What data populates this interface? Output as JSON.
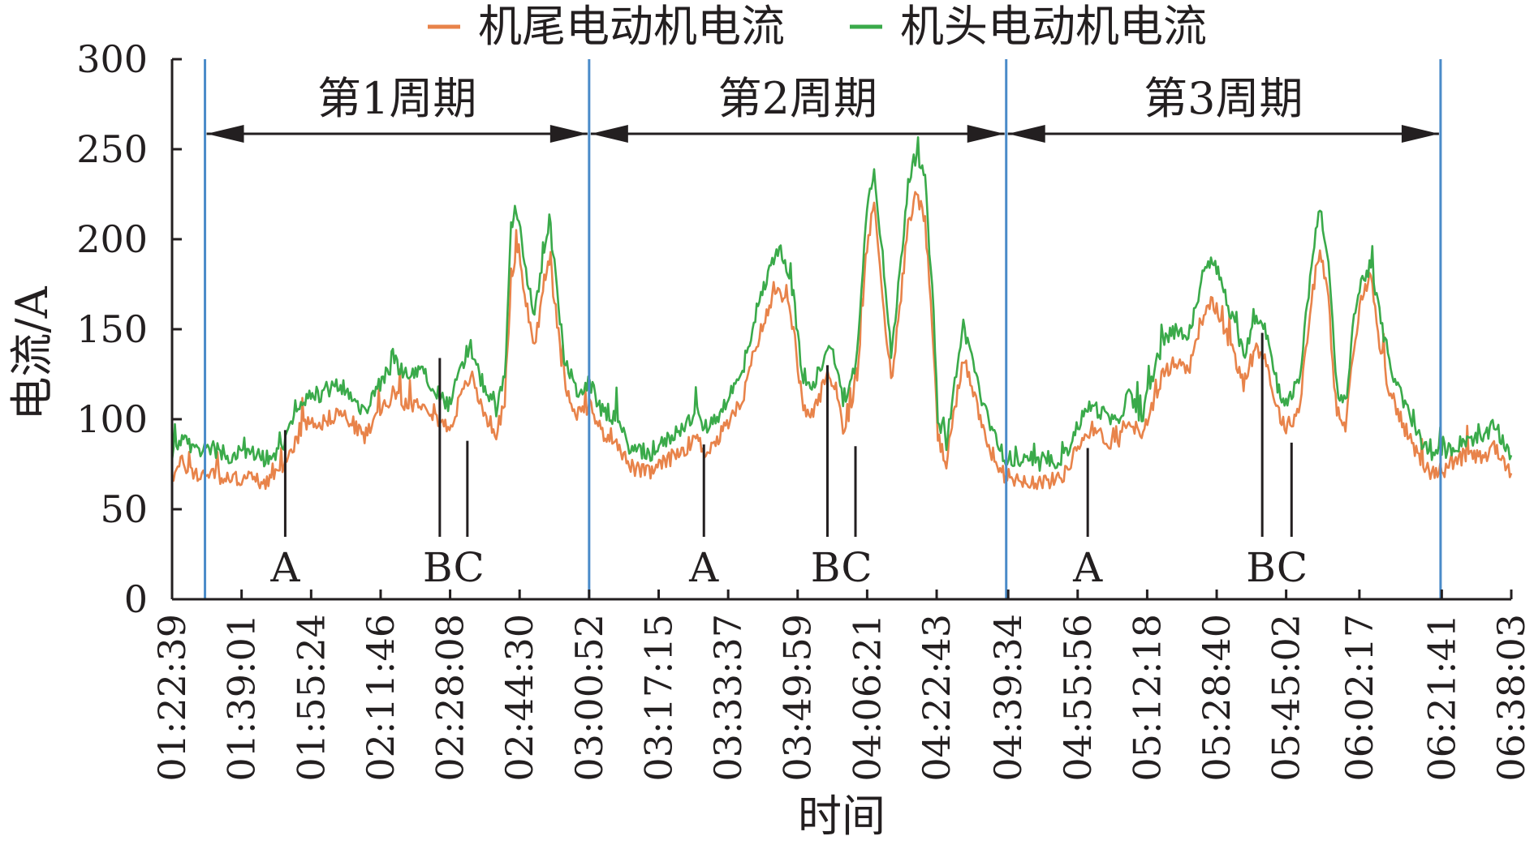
{
  "chart_data": {
    "type": "line",
    "xlabel": "时间",
    "ylabel": "电流/A",
    "ylim": [
      0,
      300
    ],
    "yticks": [
      0,
      50,
      100,
      150,
      200,
      250,
      300
    ],
    "x_range_minutes": [
      82.65,
      398.05
    ],
    "x_tick_labels": [
      "01:22:39",
      "01:39:01",
      "01:55:24",
      "02:11:46",
      "02:28:08",
      "02:44:30",
      "03:00:52",
      "03:17:15",
      "03:33:37",
      "03:49:59",
      "04:06:21",
      "04:22:43",
      "04:39:34",
      "04:55:56",
      "05:12:18",
      "05:28:40",
      "05:45:02",
      "06:02:17",
      "06:21:41",
      "06:38:03"
    ],
    "x_tick_minutes": [
      82.65,
      99.02,
      115.4,
      131.77,
      148.13,
      164.5,
      180.87,
      197.25,
      213.62,
      229.98,
      246.35,
      262.72,
      279.57,
      295.93,
      312.3,
      328.67,
      345.03,
      362.28,
      381.68,
      398.05
    ],
    "legend": {
      "position": "top-center"
    },
    "series": [
      {
        "name": "机尾电动机电流",
        "color": "#e8834a",
        "points": [
          [
            82.65,
            68
          ],
          [
            85,
            76
          ],
          [
            88,
            69
          ],
          [
            92,
            70
          ],
          [
            96,
            66
          ],
          [
            100,
            68
          ],
          [
            104,
            65
          ],
          [
            108,
            69
          ],
          [
            109,
            73
          ],
          [
            112,
            90
          ],
          [
            115,
            100
          ],
          [
            118,
            98
          ],
          [
            122,
            104
          ],
          [
            125,
            98
          ],
          [
            128,
            90
          ],
          [
            132,
            106
          ],
          [
            135,
            115
          ],
          [
            138,
            108
          ],
          [
            142,
            110
          ],
          [
            146,
            98
          ],
          [
            148,
            95
          ],
          [
            150,
            108
          ],
          [
            153,
            125
          ],
          [
            155,
            110
          ],
          [
            157,
            100
          ],
          [
            159,
            92
          ],
          [
            161,
            110
          ],
          [
            162.5,
            180
          ],
          [
            164,
            192
          ],
          [
            166,
            165
          ],
          [
            168,
            140
          ],
          [
            170,
            170
          ],
          [
            171.5,
            190
          ],
          [
            173,
            160
          ],
          [
            175,
            120
          ],
          [
            178,
            103
          ],
          [
            181,
            108
          ],
          [
            184,
            92
          ],
          [
            187,
            90
          ],
          [
            190,
            75
          ],
          [
            192,
            72
          ],
          [
            195,
            70
          ],
          [
            198,
            75
          ],
          [
            201,
            80
          ],
          [
            204,
            85
          ],
          [
            206,
            90
          ],
          [
            208,
            82
          ],
          [
            211,
            88
          ],
          [
            214,
            100
          ],
          [
            217,
            110
          ],
          [
            220,
            140
          ],
          [
            223,
            160
          ],
          [
            225,
            172
          ],
          [
            227,
            168
          ],
          [
            229,
            150
          ],
          [
            231,
            110
          ],
          [
            233,
            100
          ],
          [
            235,
            112
          ],
          [
            237,
            125
          ],
          [
            239,
            118
          ],
          [
            241,
            92
          ],
          [
            244,
            120
          ],
          [
            246,
            190
          ],
          [
            248,
            220
          ],
          [
            250,
            170
          ],
          [
            252,
            120
          ],
          [
            254,
            160
          ],
          [
            256,
            210
          ],
          [
            258,
            225
          ],
          [
            260,
            210
          ],
          [
            262,
            140
          ],
          [
            263,
            90
          ],
          [
            265,
            75
          ],
          [
            267,
            105
          ],
          [
            269,
            135
          ],
          [
            271,
            120
          ],
          [
            273,
            100
          ],
          [
            275,
            85
          ],
          [
            278,
            70
          ],
          [
            281,
            67
          ],
          [
            284,
            66
          ],
          [
            287,
            65
          ],
          [
            290,
            66
          ],
          [
            293,
            70
          ],
          [
            296,
            85
          ],
          [
            299,
            95
          ],
          [
            302,
            90
          ],
          [
            305,
            85
          ],
          [
            308,
            100
          ],
          [
            311,
            88
          ],
          [
            313,
            105
          ],
          [
            316,
            125
          ],
          [
            319,
            132
          ],
          [
            322,
            127
          ],
          [
            325,
            155
          ],
          [
            327,
            165
          ],
          [
            329,
            160
          ],
          [
            332,
            140
          ],
          [
            335,
            120
          ],
          [
            338,
            140
          ],
          [
            340,
            135
          ],
          [
            343,
            105
          ],
          [
            345,
            95
          ],
          [
            348,
            105
          ],
          [
            351,
            165
          ],
          [
            353,
            195
          ],
          [
            355,
            165
          ],
          [
            357,
            100
          ],
          [
            359,
            95
          ],
          [
            361,
            140
          ],
          [
            363,
            170
          ],
          [
            365,
            180
          ],
          [
            367,
            140
          ],
          [
            369,
            120
          ],
          [
            371,
            105
          ],
          [
            373,
            95
          ],
          [
            376,
            80
          ],
          [
            379,
            70
          ],
          [
            382,
            72
          ],
          [
            385,
            75
          ],
          [
            388,
            80
          ],
          [
            391,
            78
          ],
          [
            394,
            85
          ],
          [
            398.05,
            70
          ]
        ]
      },
      {
        "name": "机头电动机电流",
        "color": "#3aaa4a",
        "points": [
          [
            82.65,
            80
          ],
          [
            85,
            90
          ],
          [
            88,
            82
          ],
          [
            92,
            84
          ],
          [
            96,
            80
          ],
          [
            100,
            82
          ],
          [
            104,
            78
          ],
          [
            108,
            82
          ],
          [
            109,
            86
          ],
          [
            112,
            103
          ],
          [
            115,
            115
          ],
          [
            118,
            113
          ],
          [
            122,
            120
          ],
          [
            125,
            112
          ],
          [
            128,
            104
          ],
          [
            132,
            121
          ],
          [
            135,
            132
          ],
          [
            138,
            124
          ],
          [
            142,
            126
          ],
          [
            146,
            112
          ],
          [
            148,
            108
          ],
          [
            150,
            123
          ],
          [
            153,
            140
          ],
          [
            155,
            124
          ],
          [
            157,
            114
          ],
          [
            159,
            104
          ],
          [
            161,
            124
          ],
          [
            162.5,
            205
          ],
          [
            164,
            215
          ],
          [
            166,
            183
          ],
          [
            168,
            156
          ],
          [
            170,
            190
          ],
          [
            171.5,
            212
          ],
          [
            173,
            178
          ],
          [
            175,
            134
          ],
          [
            178,
            115
          ],
          [
            181,
            120
          ],
          [
            184,
            104
          ],
          [
            187,
            101
          ],
          [
            190,
            86
          ],
          [
            192,
            82
          ],
          [
            195,
            80
          ],
          [
            198,
            86
          ],
          [
            201,
            92
          ],
          [
            204,
            98
          ],
          [
            206,
            104
          ],
          [
            208,
            95
          ],
          [
            211,
            101
          ],
          [
            214,
            114
          ],
          [
            217,
            125
          ],
          [
            220,
            158
          ],
          [
            223,
            180
          ],
          [
            225,
            195
          ],
          [
            227,
            190
          ],
          [
            229,
            168
          ],
          [
            231,
            124
          ],
          [
            233,
            114
          ],
          [
            235,
            127
          ],
          [
            237,
            141
          ],
          [
            239,
            133
          ],
          [
            241,
            104
          ],
          [
            244,
            136
          ],
          [
            246,
            212
          ],
          [
            248,
            240
          ],
          [
            250,
            190
          ],
          [
            252,
            135
          ],
          [
            254,
            180
          ],
          [
            256,
            232
          ],
          [
            258,
            248
          ],
          [
            260,
            232
          ],
          [
            262,
            158
          ],
          [
            263,
            102
          ],
          [
            265,
            86
          ],
          [
            267,
            120
          ],
          [
            269,
            152
          ],
          [
            271,
            135
          ],
          [
            273,
            114
          ],
          [
            275,
            98
          ],
          [
            278,
            80
          ],
          [
            281,
            77
          ],
          [
            284,
            76
          ],
          [
            287,
            75
          ],
          [
            290,
            76
          ],
          [
            293,
            80
          ],
          [
            296,
            97
          ],
          [
            299,
            108
          ],
          [
            302,
            103
          ],
          [
            305,
            97
          ],
          [
            308,
            114
          ],
          [
            311,
            100
          ],
          [
            313,
            120
          ],
          [
            316,
            142
          ],
          [
            319,
            150
          ],
          [
            322,
            145
          ],
          [
            325,
            175
          ],
          [
            327,
            188
          ],
          [
            329,
            182
          ],
          [
            332,
            158
          ],
          [
            335,
            136
          ],
          [
            338,
            158
          ],
          [
            340,
            152
          ],
          [
            343,
            119
          ],
          [
            345,
            108
          ],
          [
            348,
            119
          ],
          [
            351,
            186
          ],
          [
            353,
            220
          ],
          [
            355,
            186
          ],
          [
            357,
            114
          ],
          [
            359,
            108
          ],
          [
            361,
            158
          ],
          [
            363,
            178
          ],
          [
            365,
            185
          ],
          [
            367,
            158
          ],
          [
            369,
            136
          ],
          [
            371,
            119
          ],
          [
            373,
            108
          ],
          [
            376,
            91
          ],
          [
            379,
            80
          ],
          [
            382,
            82
          ],
          [
            385,
            85
          ],
          [
            388,
            90
          ],
          [
            391,
            88
          ],
          [
            394,
            96
          ],
          [
            398.05,
            80
          ]
        ]
      }
    ],
    "period_boundaries_minutes": [
      90.4,
      180.87,
      279.1,
      381.4
    ],
    "periods": [
      {
        "label": "第1周期",
        "start_minutes": 90.4,
        "end_minutes": 180.87
      },
      {
        "label": "第2周期",
        "start_minutes": 180.87,
        "end_minutes": 279.1
      },
      {
        "label": "第3周期",
        "start_minutes": 279.1,
        "end_minutes": 381.4
      }
    ],
    "event_labels": [
      {
        "text": "A",
        "markers": [
          {
            "minutes": 109.3,
            "current": 94
          }
        ]
      },
      {
        "text": "BC",
        "markers": [
          {
            "minutes": 145.7,
            "current": 134
          },
          {
            "minutes": 152.2,
            "current": 88
          }
        ]
      },
      {
        "text": "A",
        "markers": [
          {
            "minutes": 207.9,
            "current": 86
          }
        ]
      },
      {
        "text": "BC",
        "markers": [
          {
            "minutes": 237.0,
            "current": 130
          },
          {
            "minutes": 243.6,
            "current": 85
          }
        ]
      },
      {
        "text": "A",
        "markers": [
          {
            "minutes": 298.3,
            "current": 84
          }
        ]
      },
      {
        "text": "BC",
        "markers": [
          {
            "minutes": 339.4,
            "current": 148
          },
          {
            "minutes": 346.3,
            "current": 87
          }
        ]
      }
    ]
  }
}
